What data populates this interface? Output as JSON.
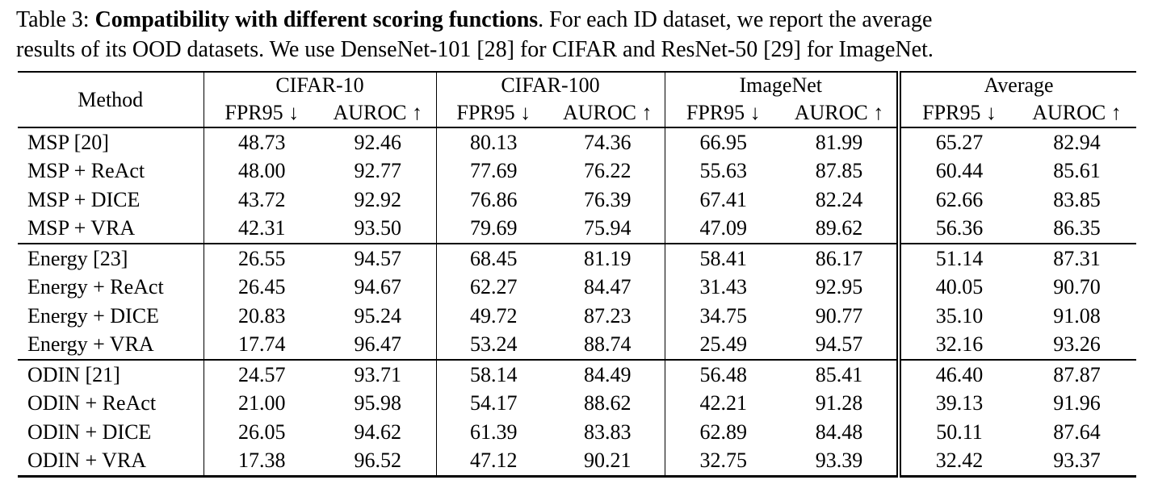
{
  "caption": {
    "prefix": "Table 3: ",
    "bold_title": "Compatibility with different scoring functions",
    "after_bold": ". For each ID dataset, we report the average",
    "line2": "results of its OOD datasets. We use DenseNet-101 [28] for CIFAR and ResNet-50 [29] for ImageNet."
  },
  "table": {
    "method_header": "Method",
    "dataset_groups": [
      "CIFAR-10",
      "CIFAR-100",
      "ImageNet",
      "Average"
    ],
    "subheaders": {
      "fpr": "FPR95 ↓",
      "auroc": "AUROC ↑"
    },
    "row_groups": [
      {
        "rows": [
          {
            "method": "MSP [20]",
            "values": [
              "48.73",
              "92.46",
              "80.13",
              "74.36",
              "66.95",
              "81.99",
              "65.27",
              "82.94"
            ],
            "bold": [
              0,
              0,
              0,
              0,
              0,
              0,
              0,
              0
            ]
          },
          {
            "method": "MSP + ReAct",
            "values": [
              "48.00",
              "92.77",
              "77.69",
              "76.22",
              "55.63",
              "87.85",
              "60.44",
              "85.61"
            ],
            "bold": [
              0,
              0,
              0,
              0,
              0,
              0,
              0,
              0
            ]
          },
          {
            "method": "MSP + DICE",
            "values": [
              "43.72",
              "92.92",
              "76.86",
              "76.39",
              "67.41",
              "82.24",
              "62.66",
              "83.85"
            ],
            "bold": [
              0,
              0,
              1,
              1,
              0,
              0,
              0,
              0
            ]
          },
          {
            "method": "MSP + VRA",
            "values": [
              "42.31",
              "93.50",
              "79.69",
              "75.94",
              "47.09",
              "89.62",
              "56.36",
              "86.35"
            ],
            "bold": [
              1,
              1,
              0,
              0,
              1,
              1,
              1,
              1
            ]
          }
        ]
      },
      {
        "rows": [
          {
            "method": "Energy [23]",
            "values": [
              "26.55",
              "94.57",
              "68.45",
              "81.19",
              "58.41",
              "86.17",
              "51.14",
              "87.31"
            ],
            "bold": [
              0,
              0,
              0,
              0,
              0,
              0,
              0,
              0
            ]
          },
          {
            "method": "Energy + ReAct",
            "values": [
              "26.45",
              "94.67",
              "62.27",
              "84.47",
              "31.43",
              "92.95",
              "40.05",
              "90.70"
            ],
            "bold": [
              0,
              0,
              0,
              0,
              0,
              0,
              0,
              0
            ]
          },
          {
            "method": "Energy + DICE",
            "values": [
              "20.83",
              "95.24",
              "49.72",
              "87.23",
              "34.75",
              "90.77",
              "35.10",
              "91.08"
            ],
            "bold": [
              0,
              0,
              1,
              0,
              0,
              0,
              0,
              0
            ]
          },
          {
            "method": "Energy + VRA",
            "values": [
              "17.74",
              "96.47",
              "53.24",
              "88.74",
              "25.49",
              "94.57",
              "32.16",
              "93.26"
            ],
            "bold": [
              1,
              1,
              0,
              1,
              1,
              1,
              1,
              1
            ]
          }
        ]
      },
      {
        "rows": [
          {
            "method": "ODIN [21]",
            "values": [
              "24.57",
              "93.71",
              "58.14",
              "84.49",
              "56.48",
              "85.41",
              "46.40",
              "87.87"
            ],
            "bold": [
              0,
              0,
              0,
              0,
              0,
              0,
              0,
              0
            ]
          },
          {
            "method": "ODIN + ReAct",
            "values": [
              "21.00",
              "95.98",
              "54.17",
              "88.62",
              "42.21",
              "91.28",
              "39.13",
              "91.96"
            ],
            "bold": [
              0,
              0,
              0,
              0,
              0,
              0,
              0,
              0
            ]
          },
          {
            "method": "ODIN + DICE",
            "values": [
              "26.05",
              "94.62",
              "61.39",
              "83.83",
              "62.89",
              "84.48",
              "50.11",
              "87.64"
            ],
            "bold": [
              0,
              0,
              0,
              0,
              0,
              0,
              0,
              0
            ]
          },
          {
            "method": "ODIN + VRA",
            "values": [
              "17.38",
              "96.52",
              "47.12",
              "90.21",
              "32.75",
              "93.39",
              "32.42",
              "93.37"
            ],
            "bold": [
              1,
              1,
              1,
              1,
              1,
              1,
              1,
              1
            ]
          }
        ]
      }
    ]
  }
}
